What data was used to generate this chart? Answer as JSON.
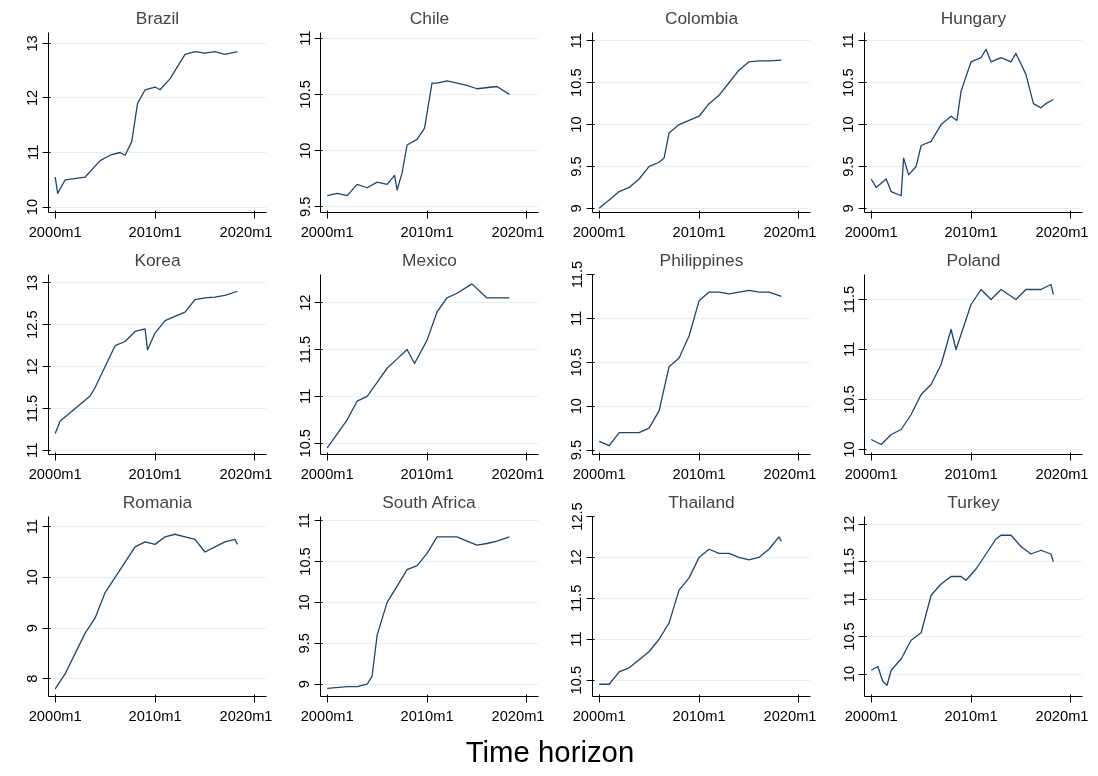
{
  "chart_data": [
    {
      "type": "line",
      "title": "Brazil",
      "grid": "y",
      "xlim": [
        "1999-05",
        "2021-03"
      ],
      "xticks": [
        {
          "value": "2000-01",
          "label": "2000m1"
        },
        {
          "value": "2010-01",
          "label": "2010m1"
        },
        {
          "value": "2020-01",
          "label": "2020m1"
        }
      ],
      "ylim": [
        9.9,
        13.2
      ],
      "yticks": [
        10,
        11,
        12,
        13
      ],
      "x": [
        "2000-01",
        "2000-04",
        "2001-01",
        "2003-01",
        "2004-07",
        "2005-07",
        "2006-07",
        "2007-01",
        "2007-09",
        "2008-04",
        "2009-01",
        "2010-01",
        "2010-07",
        "2011-07",
        "2012-01",
        "2013-01",
        "2014-01",
        "2015-01",
        "2016-01",
        "2017-01",
        "2018-04"
      ],
      "series": [
        {
          "color": "#1a476f",
          "values": [
            10.55,
            10.25,
            10.5,
            10.55,
            10.85,
            10.95,
            11.0,
            10.95,
            11.2,
            11.9,
            12.15,
            12.2,
            12.15,
            12.35,
            12.5,
            12.8,
            12.85,
            12.82,
            12.85,
            12.8,
            12.85
          ]
        }
      ]
    },
    {
      "type": "line",
      "title": "Chile",
      "grid": "y",
      "xlim": [
        "1999-05",
        "2021-03"
      ],
      "xticks": [
        {
          "value": "2000-01",
          "label": "2000m1"
        },
        {
          "value": "2010-01",
          "label": "2010m1"
        },
        {
          "value": "2020-01",
          "label": "2020m1"
        }
      ],
      "ylim": [
        9.45,
        11.05
      ],
      "yticks": [
        9.5,
        10,
        10.5,
        11
      ],
      "x": [
        "2000-01",
        "2001-01",
        "2002-01",
        "2003-01",
        "2004-01",
        "2005-01",
        "2006-01",
        "2006-10",
        "2007-01",
        "2007-07",
        "2008-01",
        "2009-01",
        "2009-10",
        "2010-07",
        "2011-01",
        "2012-01",
        "2014-01",
        "2015-01",
        "2017-01",
        "2018-04"
      ],
      "series": [
        {
          "color": "#1a476f",
          "values": [
            9.6,
            9.62,
            9.6,
            9.7,
            9.67,
            9.72,
            9.7,
            9.78,
            9.65,
            9.8,
            10.05,
            10.1,
            10.2,
            10.6,
            10.6,
            10.62,
            10.58,
            10.55,
            10.57,
            10.5
          ]
        }
      ]
    },
    {
      "type": "line",
      "title": "Colombia",
      "grid": "y",
      "xlim": [
        "1999-05",
        "2021-03"
      ],
      "xticks": [
        {
          "value": "2000-01",
          "label": "2000m1"
        },
        {
          "value": "2010-01",
          "label": "2010m1"
        },
        {
          "value": "2020-01",
          "label": "2020m1"
        }
      ],
      "ylim": [
        8.95,
        11.1
      ],
      "yticks": [
        9,
        9.5,
        10,
        10.5,
        11
      ],
      "x": [
        "2000-01",
        "2001-01",
        "2002-01",
        "2003-01",
        "2004-01",
        "2005-01",
        "2006-01",
        "2006-07",
        "2007-01",
        "2008-01",
        "2009-01",
        "2010-01",
        "2011-01",
        "2012-01",
        "2013-01",
        "2014-01",
        "2015-01",
        "2016-01",
        "2017-01",
        "2018-04"
      ],
      "series": [
        {
          "color": "#1a476f",
          "values": [
            9.0,
            9.1,
            9.2,
            9.25,
            9.35,
            9.5,
            9.55,
            9.6,
            9.9,
            10.0,
            10.05,
            10.1,
            10.25,
            10.35,
            10.5,
            10.65,
            10.75,
            10.76,
            10.76,
            10.77
          ]
        }
      ]
    },
    {
      "type": "line",
      "title": "Hungary",
      "grid": "y",
      "xlim": [
        "1999-05",
        "2021-03"
      ],
      "xticks": [
        {
          "value": "2000-01",
          "label": "2000m1"
        },
        {
          "value": "2010-01",
          "label": "2010m1"
        },
        {
          "value": "2020-01",
          "label": "2020m1"
        }
      ],
      "ylim": [
        8.95,
        11.1
      ],
      "yticks": [
        9,
        9.5,
        10,
        10.5,
        11
      ],
      "x": [
        "2000-01",
        "2000-07",
        "2001-01",
        "2001-07",
        "2002-01",
        "2003-01",
        "2003-04",
        "2003-10",
        "2004-07",
        "2005-01",
        "2006-01",
        "2007-01",
        "2008-01",
        "2008-08",
        "2009-01",
        "2010-01",
        "2011-01",
        "2011-07",
        "2012-01",
        "2013-01",
        "2014-01",
        "2014-07",
        "2015-07",
        "2016-04",
        "2017-01",
        "2017-07",
        "2018-04"
      ],
      "series": [
        {
          "color": "#1a476f",
          "values": [
            9.35,
            9.25,
            9.3,
            9.35,
            9.2,
            9.15,
            9.6,
            9.4,
            9.5,
            9.75,
            9.8,
            10.0,
            10.1,
            10.05,
            10.4,
            10.75,
            10.8,
            10.9,
            10.75,
            10.8,
            10.75,
            10.85,
            10.6,
            10.25,
            10.2,
            10.25,
            10.3
          ]
        }
      ]
    },
    {
      "type": "line",
      "title": "Korea",
      "grid": "y",
      "xlim": [
        "1999-05",
        "2021-03"
      ],
      "xticks": [
        {
          "value": "2000-01",
          "label": "2000m1"
        },
        {
          "value": "2010-01",
          "label": "2010m1"
        },
        {
          "value": "2020-01",
          "label": "2020m1"
        }
      ],
      "ylim": [
        10.95,
        13.1
      ],
      "yticks": [
        11,
        11.5,
        12,
        12.5,
        13
      ],
      "x": [
        "2000-01",
        "2000-07",
        "2001-07",
        "2002-01",
        "2003-07",
        "2004-01",
        "2005-01",
        "2006-01",
        "2007-01",
        "2008-01",
        "2009-01",
        "2009-04",
        "2010-01",
        "2011-01",
        "2012-01",
        "2013-01",
        "2014-01",
        "2015-01",
        "2016-01",
        "2017-01",
        "2018-04"
      ],
      "series": [
        {
          "color": "#1a476f",
          "values": [
            11.2,
            11.35,
            11.45,
            11.5,
            11.65,
            11.75,
            12.0,
            12.25,
            12.3,
            12.42,
            12.45,
            12.2,
            12.4,
            12.55,
            12.6,
            12.65,
            12.8,
            12.82,
            12.83,
            12.85,
            12.9
          ]
        }
      ]
    },
    {
      "type": "line",
      "title": "Mexico",
      "grid": "y",
      "xlim": [
        "1999-05",
        "2021-03"
      ],
      "xticks": [
        {
          "value": "2000-01",
          "label": "2000m1"
        },
        {
          "value": "2010-01",
          "label": "2010m1"
        },
        {
          "value": "2020-01",
          "label": "2020m1"
        }
      ],
      "ylim": [
        10.38,
        12.3
      ],
      "yticks": [
        10.5,
        11,
        11.5,
        12
      ],
      "x": [
        "2000-01",
        "2000-09",
        "2002-01",
        "2003-01",
        "2004-01",
        "2005-01",
        "2006-01",
        "2007-01",
        "2008-01",
        "2008-10",
        "2010-01",
        "2011-01",
        "2012-01",
        "2013-01",
        "2014-07",
        "2015-07",
        "2016-01",
        "2017-01",
        "2018-04"
      ],
      "series": [
        {
          "color": "#1a476f",
          "values": [
            10.45,
            10.55,
            10.75,
            10.95,
            11.0,
            11.15,
            11.3,
            11.4,
            11.5,
            11.35,
            11.6,
            11.9,
            12.05,
            12.1,
            12.2,
            12.1,
            12.05,
            12.05,
            12.05
          ]
        }
      ]
    },
    {
      "type": "line",
      "title": "Philippines",
      "grid": "y",
      "xlim": [
        "1999-05",
        "2021-03"
      ],
      "xticks": [
        {
          "value": "2000-01",
          "label": "2000m1"
        },
        {
          "value": "2010-01",
          "label": "2010m1"
        },
        {
          "value": "2020-01",
          "label": "2020m1"
        }
      ],
      "ylim": [
        9.45,
        11.5
      ],
      "yticks": [
        9.5,
        10,
        10.5,
        11,
        11.5
      ],
      "x": [
        "2000-01",
        "2001-01",
        "2002-01",
        "2003-01",
        "2004-01",
        "2005-01",
        "2006-01",
        "2007-01",
        "2008-01",
        "2009-01",
        "2010-01",
        "2011-01",
        "2012-01",
        "2013-01",
        "2014-01",
        "2015-01",
        "2016-01",
        "2017-01",
        "2018-04"
      ],
      "series": [
        {
          "color": "#1a476f",
          "values": [
            9.6,
            9.55,
            9.7,
            9.7,
            9.7,
            9.75,
            9.95,
            10.45,
            10.55,
            10.8,
            11.2,
            11.3,
            11.3,
            11.28,
            11.3,
            11.32,
            11.3,
            11.3,
            11.25
          ]
        }
      ]
    },
    {
      "type": "line",
      "title": "Poland",
      "grid": "y",
      "xlim": [
        "1999-05",
        "2021-03"
      ],
      "xticks": [
        {
          "value": "2000-01",
          "label": "2000m1"
        },
        {
          "value": "2010-01",
          "label": "2010m1"
        },
        {
          "value": "2020-01",
          "label": "2020m1"
        }
      ],
      "ylim": [
        9.95,
        11.75
      ],
      "yticks": [
        10,
        10.5,
        11,
        11.5
      ],
      "x": [
        "2000-01",
        "2001-01",
        "2002-01",
        "2003-01",
        "2004-01",
        "2005-01",
        "2006-01",
        "2007-01",
        "2008-01",
        "2008-07",
        "2009-07",
        "2010-01",
        "2011-01",
        "2012-01",
        "2013-01",
        "2014-07",
        "2015-07",
        "2017-01",
        "2018-01",
        "2018-04"
      ],
      "series": [
        {
          "color": "#1a476f",
          "values": [
            10.1,
            10.05,
            10.15,
            10.2,
            10.35,
            10.55,
            10.65,
            10.85,
            11.2,
            11.0,
            11.3,
            11.45,
            11.6,
            11.5,
            11.6,
            11.5,
            11.6,
            11.6,
            11.65,
            11.55
          ]
        }
      ]
    },
    {
      "type": "line",
      "title": "Romania",
      "grid": "y",
      "xlim": [
        "1999-05",
        "2021-03"
      ],
      "xticks": [
        {
          "value": "2000-01",
          "label": "2000m1"
        },
        {
          "value": "2010-01",
          "label": "2010m1"
        },
        {
          "value": "2020-01",
          "label": "2020m1"
        }
      ],
      "ylim": [
        7.65,
        11.2
      ],
      "yticks": [
        8,
        9,
        10,
        11
      ],
      "x": [
        "2000-01",
        "2001-01",
        "2002-01",
        "2003-01",
        "2004-01",
        "2005-01",
        "2006-01",
        "2007-01",
        "2008-01",
        "2009-01",
        "2010-01",
        "2011-01",
        "2012-01",
        "2013-01",
        "2014-01",
        "2015-01",
        "2016-01",
        "2017-01",
        "2018-01",
        "2018-04"
      ],
      "series": [
        {
          "color": "#1a476f",
          "values": [
            7.8,
            8.1,
            8.5,
            8.9,
            9.2,
            9.7,
            10.0,
            10.3,
            10.6,
            10.7,
            10.65,
            10.8,
            10.85,
            10.8,
            10.75,
            10.5,
            10.6,
            10.7,
            10.75,
            10.65
          ]
        }
      ]
    },
    {
      "type": "line",
      "title": "South Africa",
      "xlabel": "Time horizon",
      "grid": "y",
      "xlim": [
        "1999-05",
        "2021-03"
      ],
      "xticks": [
        {
          "value": "2000-01",
          "label": "2000m1"
        },
        {
          "value": "2010-01",
          "label": "2010m1"
        },
        {
          "value": "2020-01",
          "label": "2020m1"
        }
      ],
      "ylim": [
        8.85,
        11.05
      ],
      "yticks": [
        9,
        9.5,
        10,
        10.5,
        11
      ],
      "x": [
        "2000-01",
        "2002-01",
        "2003-01",
        "2004-01",
        "2004-07",
        "2005-01",
        "2006-01",
        "2007-01",
        "2008-01",
        "2009-01",
        "2010-01",
        "2011-01",
        "2012-01",
        "2013-01",
        "2014-01",
        "2015-01",
        "2016-01",
        "2017-01",
        "2018-04"
      ],
      "series": [
        {
          "color": "#1a476f",
          "values": [
            8.95,
            8.97,
            8.97,
            9.0,
            9.1,
            9.6,
            10.0,
            10.2,
            10.4,
            10.45,
            10.6,
            10.8,
            10.8,
            10.8,
            10.75,
            10.7,
            10.72,
            10.75,
            10.8
          ]
        }
      ]
    },
    {
      "type": "line",
      "title": "Thailand",
      "grid": "y",
      "xlim": [
        "1999-05",
        "2021-03"
      ],
      "xticks": [
        {
          "value": "2000-01",
          "label": "2000m1"
        },
        {
          "value": "2010-01",
          "label": "2010m1"
        },
        {
          "value": "2020-01",
          "label": "2020m1"
        }
      ],
      "ylim": [
        10.3,
        12.5
      ],
      "yticks": [
        10.5,
        11,
        11.5,
        12,
        12.5
      ],
      "x": [
        "2000-01",
        "2001-01",
        "2002-01",
        "2003-01",
        "2004-01",
        "2005-01",
        "2006-01",
        "2007-01",
        "2008-01",
        "2009-01",
        "2010-01",
        "2011-01",
        "2012-01",
        "2013-01",
        "2014-01",
        "2015-01",
        "2016-01",
        "2017-01",
        "2018-01",
        "2018-04"
      ],
      "series": [
        {
          "color": "#1a476f",
          "values": [
            10.45,
            10.45,
            10.6,
            10.65,
            10.75,
            10.85,
            11.0,
            11.2,
            11.6,
            11.75,
            12.0,
            12.1,
            12.05,
            12.05,
            12.0,
            11.97,
            12.0,
            12.1,
            12.25,
            12.2
          ]
        }
      ]
    },
    {
      "type": "line",
      "title": "Turkey",
      "grid": "y",
      "xlim": [
        "1999-05",
        "2021-03"
      ],
      "xticks": [
        {
          "value": "2000-01",
          "label": "2000m1"
        },
        {
          "value": "2010-01",
          "label": "2010m1"
        },
        {
          "value": "2020-01",
          "label": "2020m1"
        }
      ],
      "ylim": [
        9.7,
        12.1
      ],
      "yticks": [
        10,
        10.5,
        11,
        11.5,
        12
      ],
      "x": [
        "2000-01",
        "2000-09",
        "2001-03",
        "2001-08",
        "2002-01",
        "2003-01",
        "2004-01",
        "2005-01",
        "2006-01",
        "2007-01",
        "2008-01",
        "2009-01",
        "2009-07",
        "2010-07",
        "2011-01",
        "2012-07",
        "2013-01",
        "2014-01",
        "2015-01",
        "2016-01",
        "2017-01",
        "2018-01",
        "2018-04"
      ],
      "series": [
        {
          "color": "#1a476f",
          "values": [
            10.05,
            10.1,
            9.9,
            9.85,
            10.05,
            10.2,
            10.45,
            10.55,
            11.05,
            11.2,
            11.3,
            11.3,
            11.25,
            11.4,
            11.5,
            11.8,
            11.85,
            11.85,
            11.7,
            11.6,
            11.65,
            11.6,
            11.5
          ]
        }
      ]
    }
  ]
}
